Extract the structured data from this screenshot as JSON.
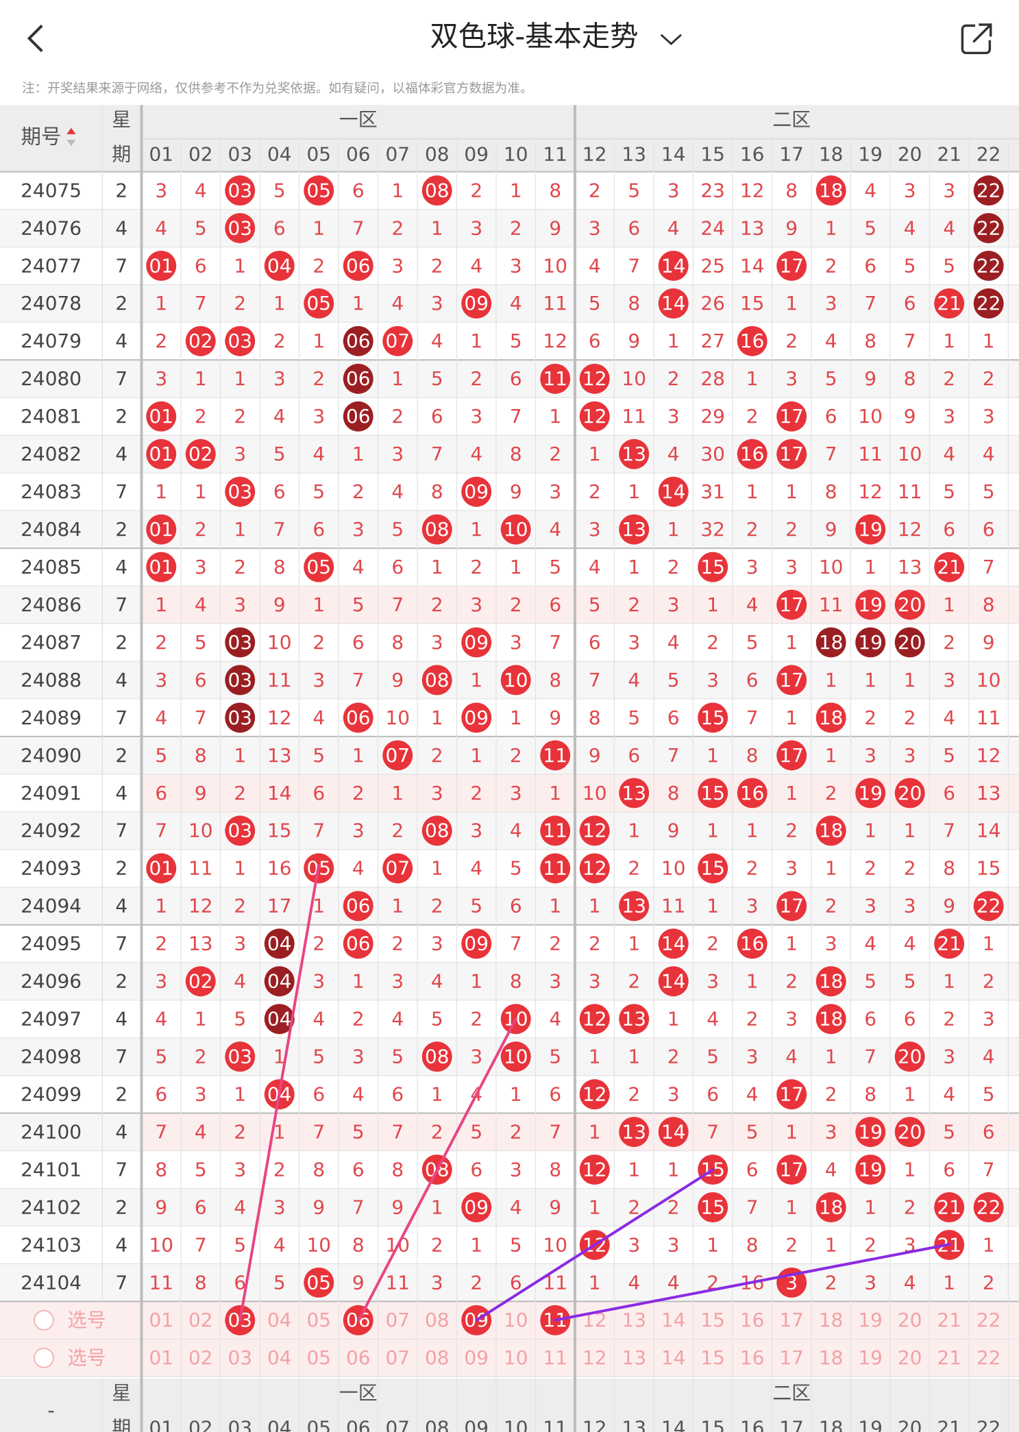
{
  "header": {
    "title": "双色球-基本走势",
    "note": "注：开奖结果来源于网络，仅供参考不作为兑奖依据。如有疑问，以福体彩官方数据为准。"
  },
  "table": {
    "issue_header": "期号",
    "weekday_header": [
      "星",
      "期"
    ],
    "zones": [
      "一区",
      "二区"
    ],
    "columns": [
      "01",
      "02",
      "03",
      "04",
      "05",
      "06",
      "07",
      "08",
      "09",
      "10",
      "11",
      "12",
      "13",
      "14",
      "15",
      "16",
      "17",
      "18",
      "19",
      "20",
      "21",
      "22"
    ],
    "rows": [
      {
        "issue": "24075",
        "weekday": "2",
        "cells": [
          "3",
          "4",
          "03",
          "5",
          "05",
          "6",
          "1",
          "08",
          "2",
          "1",
          "8",
          "2",
          "5",
          "3",
          "23",
          "12",
          "8",
          "18",
          "4",
          "3",
          "3",
          "22"
        ],
        "marks": "0010100100000000010002"
      },
      {
        "issue": "24076",
        "weekday": "4",
        "cells": [
          "4",
          "5",
          "03",
          "6",
          "1",
          "7",
          "2",
          "1",
          "3",
          "2",
          "9",
          "3",
          "6",
          "4",
          "24",
          "13",
          "9",
          "1",
          "5",
          "4",
          "4",
          "22"
        ],
        "marks": "0010000000000000000002"
      },
      {
        "issue": "24077",
        "weekday": "7",
        "cells": [
          "01",
          "6",
          "1",
          "04",
          "2",
          "06",
          "3",
          "2",
          "4",
          "3",
          "10",
          "4",
          "7",
          "14",
          "25",
          "14",
          "17",
          "2",
          "6",
          "5",
          "5",
          "22"
        ],
        "marks": "1001010000000100100002"
      },
      {
        "issue": "24078",
        "weekday": "2",
        "cells": [
          "1",
          "7",
          "2",
          "1",
          "05",
          "1",
          "4",
          "3",
          "09",
          "4",
          "11",
          "5",
          "8",
          "14",
          "26",
          "15",
          "1",
          "3",
          "7",
          "6",
          "21",
          "22"
        ],
        "marks": "0000100010000100000012"
      },
      {
        "issue": "24079",
        "weekday": "4",
        "cells": [
          "2",
          "02",
          "03",
          "2",
          "1",
          "06",
          "07",
          "4",
          "1",
          "5",
          "12",
          "6",
          "9",
          "1",
          "27",
          "16",
          "2",
          "4",
          "8",
          "7",
          "1",
          "1"
        ],
        "marks": "0110021000000001000000"
      },
      {
        "issue": "24080",
        "weekday": "7",
        "cells": [
          "3",
          "1",
          "1",
          "3",
          "2",
          "06",
          "1",
          "5",
          "2",
          "6",
          "11",
          "12",
          "10",
          "2",
          "28",
          "1",
          "3",
          "5",
          "9",
          "8",
          "2",
          "2"
        ],
        "marks": "0000020000110000000000"
      },
      {
        "issue": "24081",
        "weekday": "2",
        "cells": [
          "01",
          "2",
          "2",
          "4",
          "3",
          "06",
          "2",
          "6",
          "3",
          "7",
          "1",
          "12",
          "11",
          "3",
          "29",
          "2",
          "17",
          "6",
          "10",
          "9",
          "3",
          "3"
        ],
        "marks": "1000020000010000100000"
      },
      {
        "issue": "24082",
        "weekday": "4",
        "cells": [
          "01",
          "02",
          "3",
          "5",
          "4",
          "1",
          "3",
          "7",
          "4",
          "8",
          "2",
          "1",
          "13",
          "4",
          "30",
          "16",
          "17",
          "7",
          "11",
          "10",
          "4",
          "4"
        ],
        "marks": "1100000000001001100000"
      },
      {
        "issue": "24083",
        "weekday": "7",
        "cells": [
          "1",
          "1",
          "03",
          "6",
          "5",
          "2",
          "4",
          "8",
          "09",
          "9",
          "3",
          "2",
          "1",
          "14",
          "31",
          "1",
          "1",
          "8",
          "12",
          "11",
          "5",
          "5"
        ],
        "marks": "0010000010000100000000"
      },
      {
        "issue": "24084",
        "weekday": "2",
        "cells": [
          "01",
          "2",
          "1",
          "7",
          "6",
          "3",
          "5",
          "08",
          "1",
          "10",
          "4",
          "3",
          "13",
          "1",
          "32",
          "2",
          "2",
          "9",
          "19",
          "12",
          "6",
          "6"
        ],
        "marks": "1000000101001000001000"
      },
      {
        "issue": "24085",
        "weekday": "4",
        "cells": [
          "01",
          "3",
          "2",
          "8",
          "05",
          "4",
          "6",
          "1",
          "2",
          "1",
          "5",
          "4",
          "1",
          "2",
          "15",
          "3",
          "3",
          "10",
          "1",
          "13",
          "21",
          "7"
        ],
        "marks": "1000100000000010000010"
      },
      {
        "issue": "24086",
        "weekday": "7",
        "cells": [
          "1",
          "4",
          "3",
          "9",
          "1",
          "5",
          "7",
          "2",
          "3",
          "2",
          "6",
          "5",
          "2",
          "3",
          "1",
          "4",
          "17",
          "11",
          "19",
          "20",
          "1",
          "8"
        ],
        "marks": "0000000000000000101100"
      },
      {
        "issue": "24087",
        "weekday": "2",
        "cells": [
          "2",
          "5",
          "03",
          "10",
          "2",
          "6",
          "8",
          "3",
          "09",
          "3",
          "7",
          "6",
          "3",
          "4",
          "2",
          "5",
          "1",
          "18",
          "19",
          "20",
          "2",
          "9"
        ],
        "marks": "0020000010000000022200"
      },
      {
        "issue": "24088",
        "weekday": "4",
        "cells": [
          "3",
          "6",
          "03",
          "11",
          "3",
          "7",
          "9",
          "08",
          "1",
          "10",
          "8",
          "7",
          "4",
          "5",
          "3",
          "6",
          "17",
          "1",
          "1",
          "1",
          "3",
          "10"
        ],
        "marks": "0020000101000000100000"
      },
      {
        "issue": "24089",
        "weekday": "7",
        "cells": [
          "4",
          "7",
          "03",
          "12",
          "4",
          "06",
          "10",
          "1",
          "09",
          "1",
          "9",
          "8",
          "5",
          "6",
          "15",
          "7",
          "1",
          "18",
          "2",
          "2",
          "4",
          "11"
        ],
        "marks": "0020010010000010010000"
      },
      {
        "issue": "24090",
        "weekday": "2",
        "cells": [
          "5",
          "8",
          "1",
          "13",
          "5",
          "1",
          "07",
          "2",
          "1",
          "2",
          "11",
          "9",
          "6",
          "7",
          "1",
          "8",
          "17",
          "1",
          "3",
          "3",
          "5",
          "12"
        ],
        "marks": "0000001000100000100000"
      },
      {
        "issue": "24091",
        "weekday": "4",
        "cells": [
          "6",
          "9",
          "2",
          "14",
          "6",
          "2",
          "1",
          "3",
          "2",
          "3",
          "1",
          "10",
          "13",
          "8",
          "15",
          "16",
          "1",
          "2",
          "19",
          "20",
          "6",
          "13"
        ],
        "marks": "0000000000001011001100"
      },
      {
        "issue": "24092",
        "weekday": "7",
        "cells": [
          "7",
          "10",
          "03",
          "15",
          "7",
          "3",
          "2",
          "08",
          "3",
          "4",
          "11",
          "12",
          "1",
          "9",
          "1",
          "1",
          "2",
          "18",
          "1",
          "1",
          "7",
          "14"
        ],
        "marks": "0010000100110000010000"
      },
      {
        "issue": "24093",
        "weekday": "2",
        "cells": [
          "01",
          "11",
          "1",
          "16",
          "05",
          "4",
          "07",
          "1",
          "4",
          "5",
          "11",
          "12",
          "2",
          "10",
          "15",
          "2",
          "3",
          "1",
          "2",
          "2",
          "8",
          "15"
        ],
        "marks": "1000101000110010000000"
      },
      {
        "issue": "24094",
        "weekday": "4",
        "cells": [
          "1",
          "12",
          "2",
          "17",
          "1",
          "06",
          "1",
          "2",
          "5",
          "6",
          "1",
          "1",
          "13",
          "11",
          "1",
          "3",
          "17",
          "2",
          "3",
          "3",
          "9",
          "22"
        ],
        "marks": "0000010000001000100001"
      },
      {
        "issue": "24095",
        "weekday": "7",
        "cells": [
          "2",
          "13",
          "3",
          "04",
          "2",
          "06",
          "2",
          "3",
          "09",
          "7",
          "2",
          "2",
          "1",
          "14",
          "2",
          "16",
          "1",
          "3",
          "4",
          "4",
          "21",
          "1"
        ],
        "marks": "0002010010000101000010"
      },
      {
        "issue": "24096",
        "weekday": "2",
        "cells": [
          "3",
          "02",
          "4",
          "04",
          "3",
          "1",
          "3",
          "4",
          "1",
          "8",
          "3",
          "3",
          "2",
          "14",
          "3",
          "1",
          "2",
          "18",
          "5",
          "5",
          "1",
          "2"
        ],
        "marks": "0102000000000100010000"
      },
      {
        "issue": "24097",
        "weekday": "4",
        "cells": [
          "4",
          "1",
          "5",
          "04",
          "4",
          "2",
          "4",
          "5",
          "2",
          "10",
          "4",
          "12",
          "13",
          "1",
          "4",
          "2",
          "3",
          "18",
          "6",
          "6",
          "2",
          "3"
        ],
        "marks": "0002000001011000010000"
      },
      {
        "issue": "24098",
        "weekday": "7",
        "cells": [
          "5",
          "2",
          "03",
          "1",
          "5",
          "3",
          "5",
          "08",
          "3",
          "10",
          "5",
          "1",
          "1",
          "2",
          "5",
          "3",
          "4",
          "1",
          "7",
          "20",
          "3",
          "4"
        ],
        "marks": "0010000101000000000100"
      },
      {
        "issue": "24099",
        "weekday": "2",
        "cells": [
          "6",
          "3",
          "1",
          "04",
          "6",
          "4",
          "6",
          "1",
          "4",
          "1",
          "6",
          "12",
          "2",
          "3",
          "6",
          "4",
          "17",
          "2",
          "8",
          "1",
          "4",
          "5"
        ],
        "marks": "0001000000010000100000"
      },
      {
        "issue": "24100",
        "weekday": "4",
        "cells": [
          "7",
          "4",
          "2",
          "1",
          "7",
          "5",
          "7",
          "2",
          "5",
          "2",
          "7",
          "1",
          "13",
          "14",
          "7",
          "5",
          "1",
          "3",
          "19",
          "20",
          "5",
          "6"
        ],
        "marks": "0000000000001100001100"
      },
      {
        "issue": "24101",
        "weekday": "7",
        "cells": [
          "8",
          "5",
          "3",
          "2",
          "8",
          "6",
          "8",
          "08",
          "6",
          "3",
          "8",
          "12",
          "1",
          "1",
          "15",
          "6",
          "17",
          "4",
          "19",
          "1",
          "6",
          "7"
        ],
        "marks": "0000000100010010101000"
      },
      {
        "issue": "24102",
        "weekday": "2",
        "cells": [
          "9",
          "6",
          "4",
          "3",
          "9",
          "7",
          "9",
          "1",
          "09",
          "4",
          "9",
          "1",
          "2",
          "2",
          "15",
          "7",
          "1",
          "18",
          "1",
          "2",
          "21",
          "22"
        ],
        "marks": "0000000010000010010011"
      },
      {
        "issue": "24103",
        "weekday": "4",
        "cells": [
          "10",
          "7",
          "5",
          "4",
          "10",
          "8",
          "10",
          "2",
          "1",
          "5",
          "10",
          "12",
          "3",
          "3",
          "1",
          "8",
          "2",
          "1",
          "2",
          "3",
          "21",
          "1"
        ],
        "marks": "0000000000010000000010"
      },
      {
        "issue": "24104",
        "weekday": "7",
        "cells": [
          "11",
          "8",
          "6",
          "5",
          "05",
          "9",
          "11",
          "3",
          "2",
          "6",
          "11",
          "1",
          "4",
          "4",
          "2",
          "16",
          "3",
          "2",
          "3",
          "4",
          "1",
          "2"
        ],
        "marks": "0000100000000000100000"
      }
    ]
  },
  "selection": {
    "label": "选号",
    "rows": [
      {
        "marks": "0010010010100000000000"
      },
      {
        "marks": "0000000000000000000000"
      }
    ]
  },
  "footer_header": {
    "issue_header": "-"
  }
}
